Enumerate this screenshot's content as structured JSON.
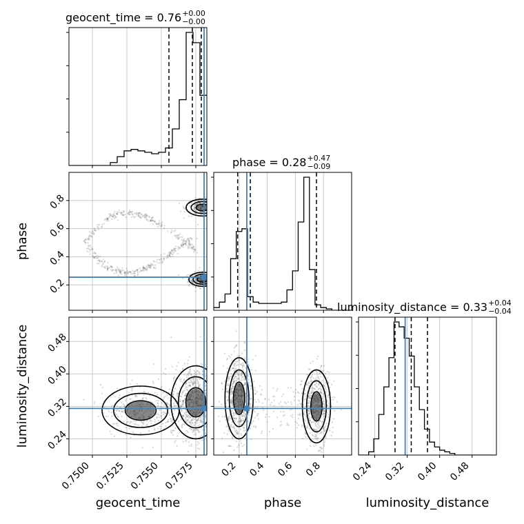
{
  "colors": {
    "truth": "#4682b4",
    "hist": "#000000",
    "grid": "#c8c8c8",
    "scatter": "#555555"
  },
  "chart_data": {
    "type": "corner",
    "grid": true,
    "parameters": [
      {
        "name": "geocent_time",
        "range": [
          0.7483,
          0.7583
        ],
        "ticks": [
          0.75,
          0.7525,
          0.755,
          0.7575
        ],
        "tick_labels": [
          "0.7500",
          "0.7525",
          "0.7550",
          "0.7575"
        ],
        "truth": 0.7581
      },
      {
        "name": "phase",
        "range": [
          0.02,
          1.0
        ],
        "ticks": [
          0.2,
          0.4,
          0.6,
          0.8
        ],
        "tick_labels": [
          "0.2",
          "0.4",
          "0.6",
          "0.8"
        ],
        "truth": 0.255
      },
      {
        "name": "luminosity_distance",
        "range": [
          0.2,
          0.54
        ],
        "ticks": [
          0.24,
          0.32,
          0.4,
          0.48
        ],
        "tick_labels": [
          "0.24",
          "0.32",
          "0.40",
          "0.48"
        ],
        "truth": 0.315
      }
    ],
    "titles": [
      {
        "param": "geocent_time",
        "prefix": "geocent_time = 0.76",
        "plus": "+0.00",
        "minus": "−0.00"
      },
      {
        "param": "phase",
        "prefix": "phase = 0.28",
        "plus": "+0.47",
        "minus": "−0.09"
      },
      {
        "param": "luminosity_distance",
        "prefix": "luminosity_distance = 0.33",
        "plus": "+0.04",
        "minus": "−0.04"
      }
    ],
    "axis_labels": {
      "x": [
        "geocent_time",
        "phase",
        "luminosity_distance"
      ],
      "y": [
        "phase",
        "luminosity_distance"
      ]
    },
    "histograms": [
      {
        "param": "geocent_time",
        "bin_edges_start": 0.7483,
        "bin_width": 0.0005,
        "counts": [
          0,
          0,
          0,
          0,
          0,
          0,
          2,
          6,
          10,
          11,
          10,
          9,
          8,
          9,
          12,
          25,
          45,
          91,
          84,
          48
        ],
        "quantiles": [
          0.75555,
          0.75725,
          0.7579
        ]
      },
      {
        "param": "phase",
        "bin_edges_start": 0.02,
        "bin_width": 0.04,
        "counts": [
          2,
          6,
          12,
          38,
          58,
          60,
          10,
          6,
          5,
          5,
          5,
          5,
          6,
          15,
          29,
          65,
          98,
          30,
          4,
          2,
          1,
          0,
          0,
          0,
          0
        ],
        "quantiles": [
          0.19,
          0.28,
          0.75
        ]
      },
      {
        "param": "luminosity_distance",
        "bin_edges_start": 0.2,
        "bin_width": 0.0125,
        "counts": [
          0,
          0,
          2,
          10,
          25,
          42,
          60,
          82,
          79,
          72,
          61,
          42,
          28,
          16,
          8,
          5,
          3,
          2,
          1,
          0,
          0,
          0,
          0,
          0,
          0,
          0,
          0
        ],
        "quantiles": [
          0.29,
          0.33,
          0.37
        ]
      }
    ],
    "panels_2d": [
      {
        "x": "geocent_time",
        "y": "phase",
        "clusters": [
          {
            "cx": 0.758,
            "cy": 0.24,
            "sx": 0.0005,
            "sy": 0.025,
            "n": 380
          },
          {
            "cx": 0.758,
            "cy": 0.75,
            "sx": 0.0006,
            "sy": 0.03,
            "n": 260
          }
        ],
        "arc": {
          "t0": 0.7495,
          "t1": 0.7575,
          "n": 500
        }
      },
      {
        "x": "geocent_time",
        "y": "luminosity_distance",
        "clusters": [
          {
            "cx": 0.7575,
            "cy": 0.33,
            "sx": 0.0009,
            "sy": 0.045,
            "n": 900
          },
          {
            "cx": 0.7535,
            "cy": 0.31,
            "sx": 0.0014,
            "sy": 0.03,
            "n": 350
          }
        ]
      },
      {
        "x": "phase",
        "y": "luminosity_distance",
        "clusters": [
          {
            "cx": 0.2,
            "cy": 0.34,
            "sx": 0.05,
            "sy": 0.05,
            "n": 700
          },
          {
            "cx": 0.75,
            "cy": 0.32,
            "sx": 0.05,
            "sy": 0.045,
            "n": 600
          },
          {
            "cx": 0.5,
            "cy": 0.32,
            "sx": 0.18,
            "sy": 0.03,
            "n": 120
          }
        ]
      }
    ]
  }
}
